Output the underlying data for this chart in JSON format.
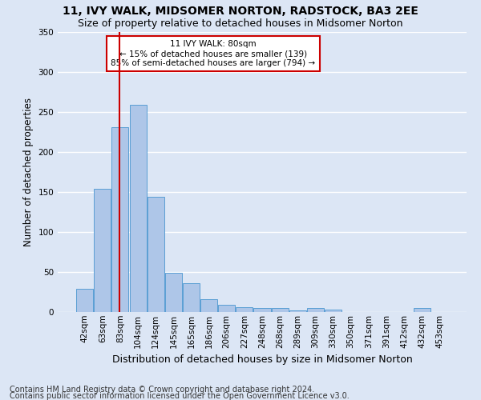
{
  "title": "11, IVY WALK, MIDSOMER NORTON, RADSTOCK, BA3 2EE",
  "subtitle": "Size of property relative to detached houses in Midsomer Norton",
  "xlabel": "Distribution of detached houses by size in Midsomer Norton",
  "ylabel": "Number of detached properties",
  "footnote1": "Contains HM Land Registry data © Crown copyright and database right 2024.",
  "footnote2": "Contains public sector information licensed under the Open Government Licence v3.0.",
  "categories": [
    "42sqm",
    "63sqm",
    "83sqm",
    "104sqm",
    "124sqm",
    "145sqm",
    "165sqm",
    "186sqm",
    "206sqm",
    "227sqm",
    "248sqm",
    "268sqm",
    "289sqm",
    "309sqm",
    "330sqm",
    "350sqm",
    "371sqm",
    "391sqm",
    "412sqm",
    "432sqm",
    "453sqm"
  ],
  "values": [
    29,
    154,
    231,
    259,
    144,
    49,
    36,
    16,
    9,
    6,
    5,
    5,
    2,
    5,
    3,
    0,
    0,
    0,
    0,
    5,
    0
  ],
  "bar_color": "#aec6e8",
  "bar_edge_color": "#5a9fd4",
  "vline_color": "#cc0000",
  "annotation_text": "11 IVY WALK: 80sqm\n← 15% of detached houses are smaller (139)\n85% of semi-detached houses are larger (794) →",
  "ylim": [
    0,
    350
  ],
  "plot_bg_color": "#dce6f5",
  "grid_color": "#ffffff",
  "title_fontsize": 10,
  "subtitle_fontsize": 9,
  "ylabel_fontsize": 8.5,
  "xlabel_fontsize": 9,
  "tick_fontsize": 7.5,
  "footnote_fontsize": 7
}
